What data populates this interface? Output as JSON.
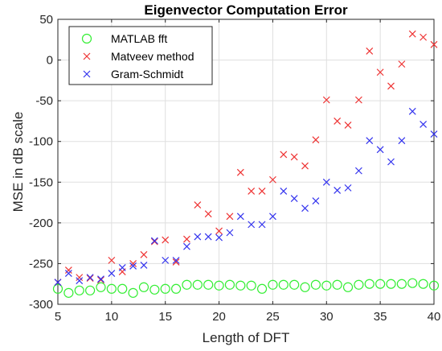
{
  "chart_data": {
    "type": "scatter",
    "title": "Eigenvector Computation Error",
    "xlabel": "Length of DFT",
    "ylabel": "MSE in dB scale",
    "xlim": [
      5,
      40
    ],
    "ylim": [
      -300,
      50
    ],
    "xticks": [
      5,
      10,
      15,
      20,
      25,
      30,
      35,
      40
    ],
    "yticks": [
      -300,
      -250,
      -200,
      -150,
      -100,
      -50,
      0,
      50
    ],
    "grid": true,
    "legend_position": "top-left",
    "x": [
      5,
      6,
      7,
      8,
      9,
      10,
      11,
      12,
      13,
      14,
      15,
      16,
      17,
      18,
      19,
      20,
      21,
      22,
      23,
      24,
      25,
      26,
      27,
      28,
      29,
      30,
      31,
      32,
      33,
      34,
      35,
      36,
      37,
      38,
      39,
      40
    ],
    "series": [
      {
        "name": "MATLAB fft",
        "marker": "circle",
        "color": "#33ee33",
        "values": [
          -281,
          -286,
          -283,
          -283,
          -279,
          -281,
          -281,
          -286,
          -279,
          -282,
          -281,
          -281,
          -276,
          -276,
          -276,
          -277,
          -276,
          -277,
          -277,
          -281,
          -276,
          -276,
          -276,
          -279,
          -276,
          -277,
          -276,
          -279,
          -276,
          -275,
          -275,
          -275,
          -275,
          -274,
          -275,
          -277
        ]
      },
      {
        "name": "Matveev method",
        "marker": "x",
        "color": "#ee3333",
        "values": [
          -273,
          -258,
          -267,
          -268,
          -270,
          -246,
          -260,
          -250,
          -239,
          -223,
          -221,
          -248,
          -220,
          -178,
          -189,
          -210,
          -192,
          -138,
          -161,
          -161,
          -147,
          -116,
          -119,
          -130,
          -98,
          -49,
          -75,
          -80,
          -49,
          11,
          -15,
          -32,
          -5,
          32,
          28,
          19
        ]
      },
      {
        "name": "Gram-Schmidt",
        "marker": "x",
        "color": "#3333ee",
        "values": [
          -273,
          -262,
          -271,
          -267,
          -269,
          -262,
          -255,
          -253,
          -252,
          -222,
          -246,
          -246,
          -229,
          -217,
          -217,
          -218,
          -212,
          -192,
          -202,
          -202,
          -192,
          -161,
          -170,
          -182,
          -173,
          -150,
          -160,
          -157,
          -136,
          -99,
          -110,
          -125,
          -99,
          -63,
          -79,
          -91
        ]
      }
    ]
  }
}
